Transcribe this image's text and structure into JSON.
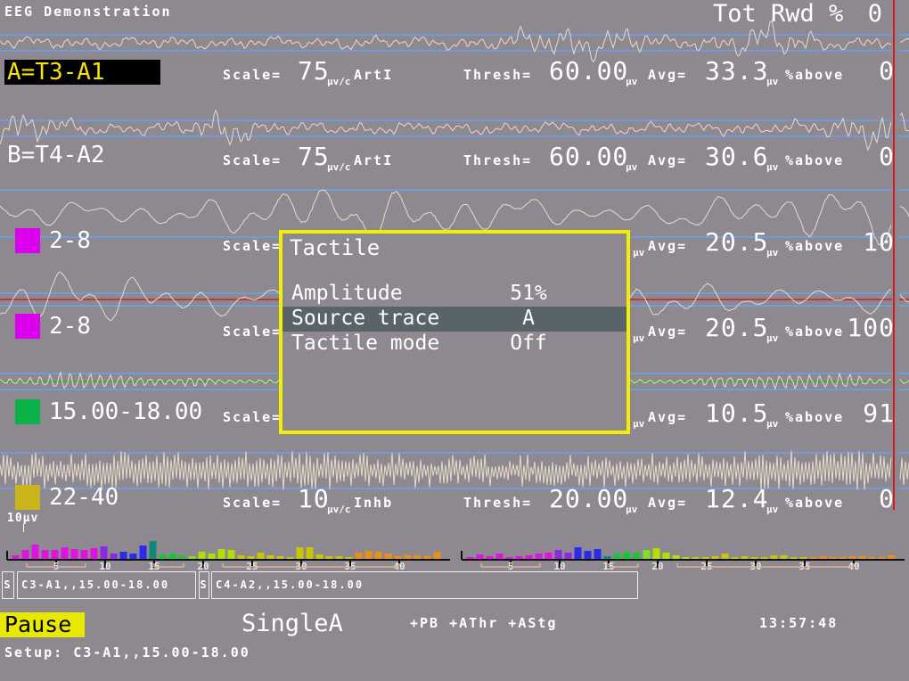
{
  "colors": {
    "background": "#8e8890",
    "trace": "#e8dcc8",
    "threshold_line": "#6aa3e8",
    "cursor_line": "#cc2020",
    "center_line_red": "#cc2020",
    "center_line_green": "#2db52d",
    "dialog_border": "#f2ef00",
    "selected_row_bg": "#59636a",
    "selected_trace_label_bg": "#000000",
    "selected_trace_label_fg": "#f5e400",
    "pause_bg": "#e9e900",
    "band_marker": "#d8b095",
    "axis": "#111111",
    "spectrum_bands": {
      "magenta": "#e012e0",
      "violet": "#8a2be2",
      "blue": "#2a2af0",
      "teal": "#0e8877",
      "green": "#16c838",
      "lightgreen": "#7fe020",
      "chartreuse": "#b4e000",
      "yellow": "#c8c800",
      "orange": "#e89018"
    }
  },
  "header": {
    "title": "EEG Demonstration",
    "tot_rwd_label": "Tot Rwd %",
    "tot_rwd_value": "0"
  },
  "traces": [
    {
      "label": "A=T3-A1",
      "selected": true,
      "swatch": null,
      "scale_label": "Scale=",
      "scale_value": "75",
      "scale_unit": "µv/c",
      "scale_type": "ArtI",
      "thresh_label": "Thresh=",
      "thresh_value": "60.00",
      "thresh_unit": "µv",
      "avg_label": "Avg=",
      "avg_value": "33.3",
      "avg_unit": "µv",
      "above_label": "%above",
      "above_value": "0",
      "center_line": null,
      "wave": {
        "type": "raw",
        "seed": 11
      }
    },
    {
      "label": "B=T4-A2",
      "selected": false,
      "swatch": null,
      "scale_label": "Scale=",
      "scale_value": "75",
      "scale_unit": "µv/c",
      "scale_type": "ArtI",
      "thresh_label": "Thresh=",
      "thresh_value": "60.00",
      "thresh_unit": "µv",
      "avg_label": "Avg=",
      "avg_value": "30.6",
      "avg_unit": "µv",
      "above_label": "%above",
      "above_value": "0",
      "center_line": null,
      "wave": {
        "type": "raw",
        "seed": 29
      }
    },
    {
      "label": "2-8",
      "selected": false,
      "swatch": "#dd00ee",
      "scale_label": "Scale=",
      "scale_value": null,
      "scale_unit": null,
      "scale_type": null,
      "thresh_label": null,
      "thresh_value": null,
      "thresh_unit": "µv",
      "avg_label": "Avg=",
      "avg_value": "20.5",
      "avg_unit": "µv",
      "above_label": "%above",
      "above_value": "10",
      "center_line": null,
      "wave": {
        "type": "slow",
        "seed": 41
      }
    },
    {
      "label": "2-8",
      "selected": false,
      "swatch": "#dd00ee",
      "scale_label": "Scale=",
      "scale_value": null,
      "scale_unit": null,
      "scale_type": null,
      "thresh_label": null,
      "thresh_value": null,
      "thresh_unit": "µv",
      "avg_label": "Avg=",
      "avg_value": "20.5",
      "avg_unit": "µv",
      "above_label": "%above",
      "above_value": "100",
      "center_line": "red",
      "wave": {
        "type": "slow",
        "seed": 59
      }
    },
    {
      "label": "15.00-18.00",
      "selected": false,
      "swatch": "#09b34a",
      "scale_label": "Scale=",
      "scale_value": null,
      "scale_unit": null,
      "scale_type": null,
      "thresh_label": null,
      "thresh_value": null,
      "thresh_unit": "µv",
      "avg_label": "Avg=",
      "avg_value": "10.5",
      "avg_unit": "µv",
      "above_label": "%above",
      "above_value": "91",
      "center_line": "green",
      "wave": {
        "type": "burst",
        "seed": 73
      }
    },
    {
      "label": "22-40",
      "selected": false,
      "swatch": "#c9b419",
      "scale_label": "Scale=",
      "scale_value": "10",
      "scale_unit": "µv/c",
      "scale_type": "Inhb",
      "thresh_label": "Thresh=",
      "thresh_value": "20.00",
      "thresh_unit": "µv",
      "avg_label": "Avg=",
      "avg_value": "12.4",
      "avg_unit": "µv",
      "above_label": "%above",
      "above_value": "0",
      "center_line": null,
      "wave": {
        "type": "spiky",
        "seed": 89
      }
    }
  ],
  "scale_marker": "10µv",
  "dialog": {
    "title": "Tactile",
    "rows": [
      {
        "label": "Amplitude",
        "value": "51%",
        "selected": false
      },
      {
        "label": "Source trace",
        "value": "A",
        "selected": true
      },
      {
        "label": "Tactile mode",
        "value": "Off",
        "selected": false
      }
    ]
  },
  "spectra": {
    "tick_labels": [
      "5",
      "10",
      "15",
      "20",
      "25",
      "30",
      "35",
      "40"
    ],
    "band_markers": [
      [
        2,
        8
      ],
      [
        15,
        18
      ],
      [
        22,
        40
      ]
    ],
    "panels": [
      {
        "name": "left-spectrum-C3",
        "heights": [
          4,
          10,
          16,
          10,
          10,
          13,
          11,
          10,
          12,
          14,
          6,
          8,
          6,
          15,
          20,
          5,
          6,
          4,
          3,
          8,
          6,
          11,
          10,
          4,
          3,
          7,
          4,
          3,
          2,
          13,
          13,
          5,
          3,
          3,
          2,
          7,
          9,
          8,
          6,
          3,
          4,
          4,
          3,
          8
        ]
      },
      {
        "name": "right-spectrum-C4",
        "heights": [
          2,
          5,
          3,
          6,
          2,
          3,
          4,
          6,
          7,
          10,
          7,
          13,
          9,
          11,
          3,
          6,
          8,
          7,
          10,
          12,
          7,
          4,
          2,
          2,
          2,
          3,
          6,
          2,
          3,
          2,
          2,
          4,
          4,
          2,
          2,
          2,
          3,
          2,
          2,
          3,
          3,
          2,
          2,
          4
        ]
      }
    ]
  },
  "channel_boxes": [
    {
      "prefix": "S",
      "label": "C3-A1,,15.00-18.00"
    },
    {
      "prefix": "S",
      "label": "C4-A2,,15.00-18.00"
    }
  ],
  "footer": {
    "pause_label": "Pause",
    "mode_label": "SingleA",
    "flags": "+PB +AThr +AStg",
    "clock": "13:57:48",
    "setup_line": "Setup: C3-A1,,15.00-18.00"
  }
}
